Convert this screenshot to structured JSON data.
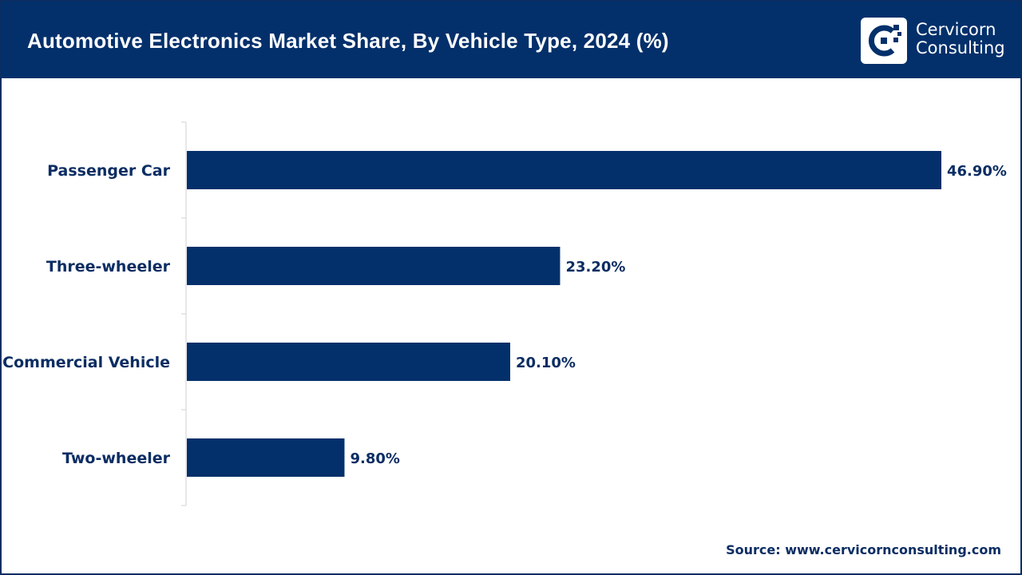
{
  "header": {
    "title": "Automotive Electronics Market Share, By Vehicle Type, 2024 (%)",
    "logo_line1": "Cervicorn",
    "logo_line2": "Consulting",
    "logo_icon": "cervicorn-logo-icon"
  },
  "colors": {
    "header_bg": "#03306b",
    "bar": "#03306b",
    "text": "#0b2d63"
  },
  "chart_data": {
    "type": "bar",
    "orientation": "horizontal",
    "title": "Automotive Electronics Market Share, By Vehicle Type, 2024 (%)",
    "categories": [
      "Passenger Car",
      "Three-wheeler",
      "Commercial Vehicle",
      "Two-wheeler"
    ],
    "values": [
      46.9,
      23.2,
      20.1,
      9.8
    ],
    "data_labels": [
      "46.90%",
      "23.20%",
      "20.10%",
      "9.80%"
    ],
    "xlabel": "",
    "ylabel": "",
    "xlim": [
      0,
      46.9
    ],
    "grid": false,
    "legend": "none"
  },
  "footer": {
    "source": "Source: www.cervicornconsulting.com"
  }
}
